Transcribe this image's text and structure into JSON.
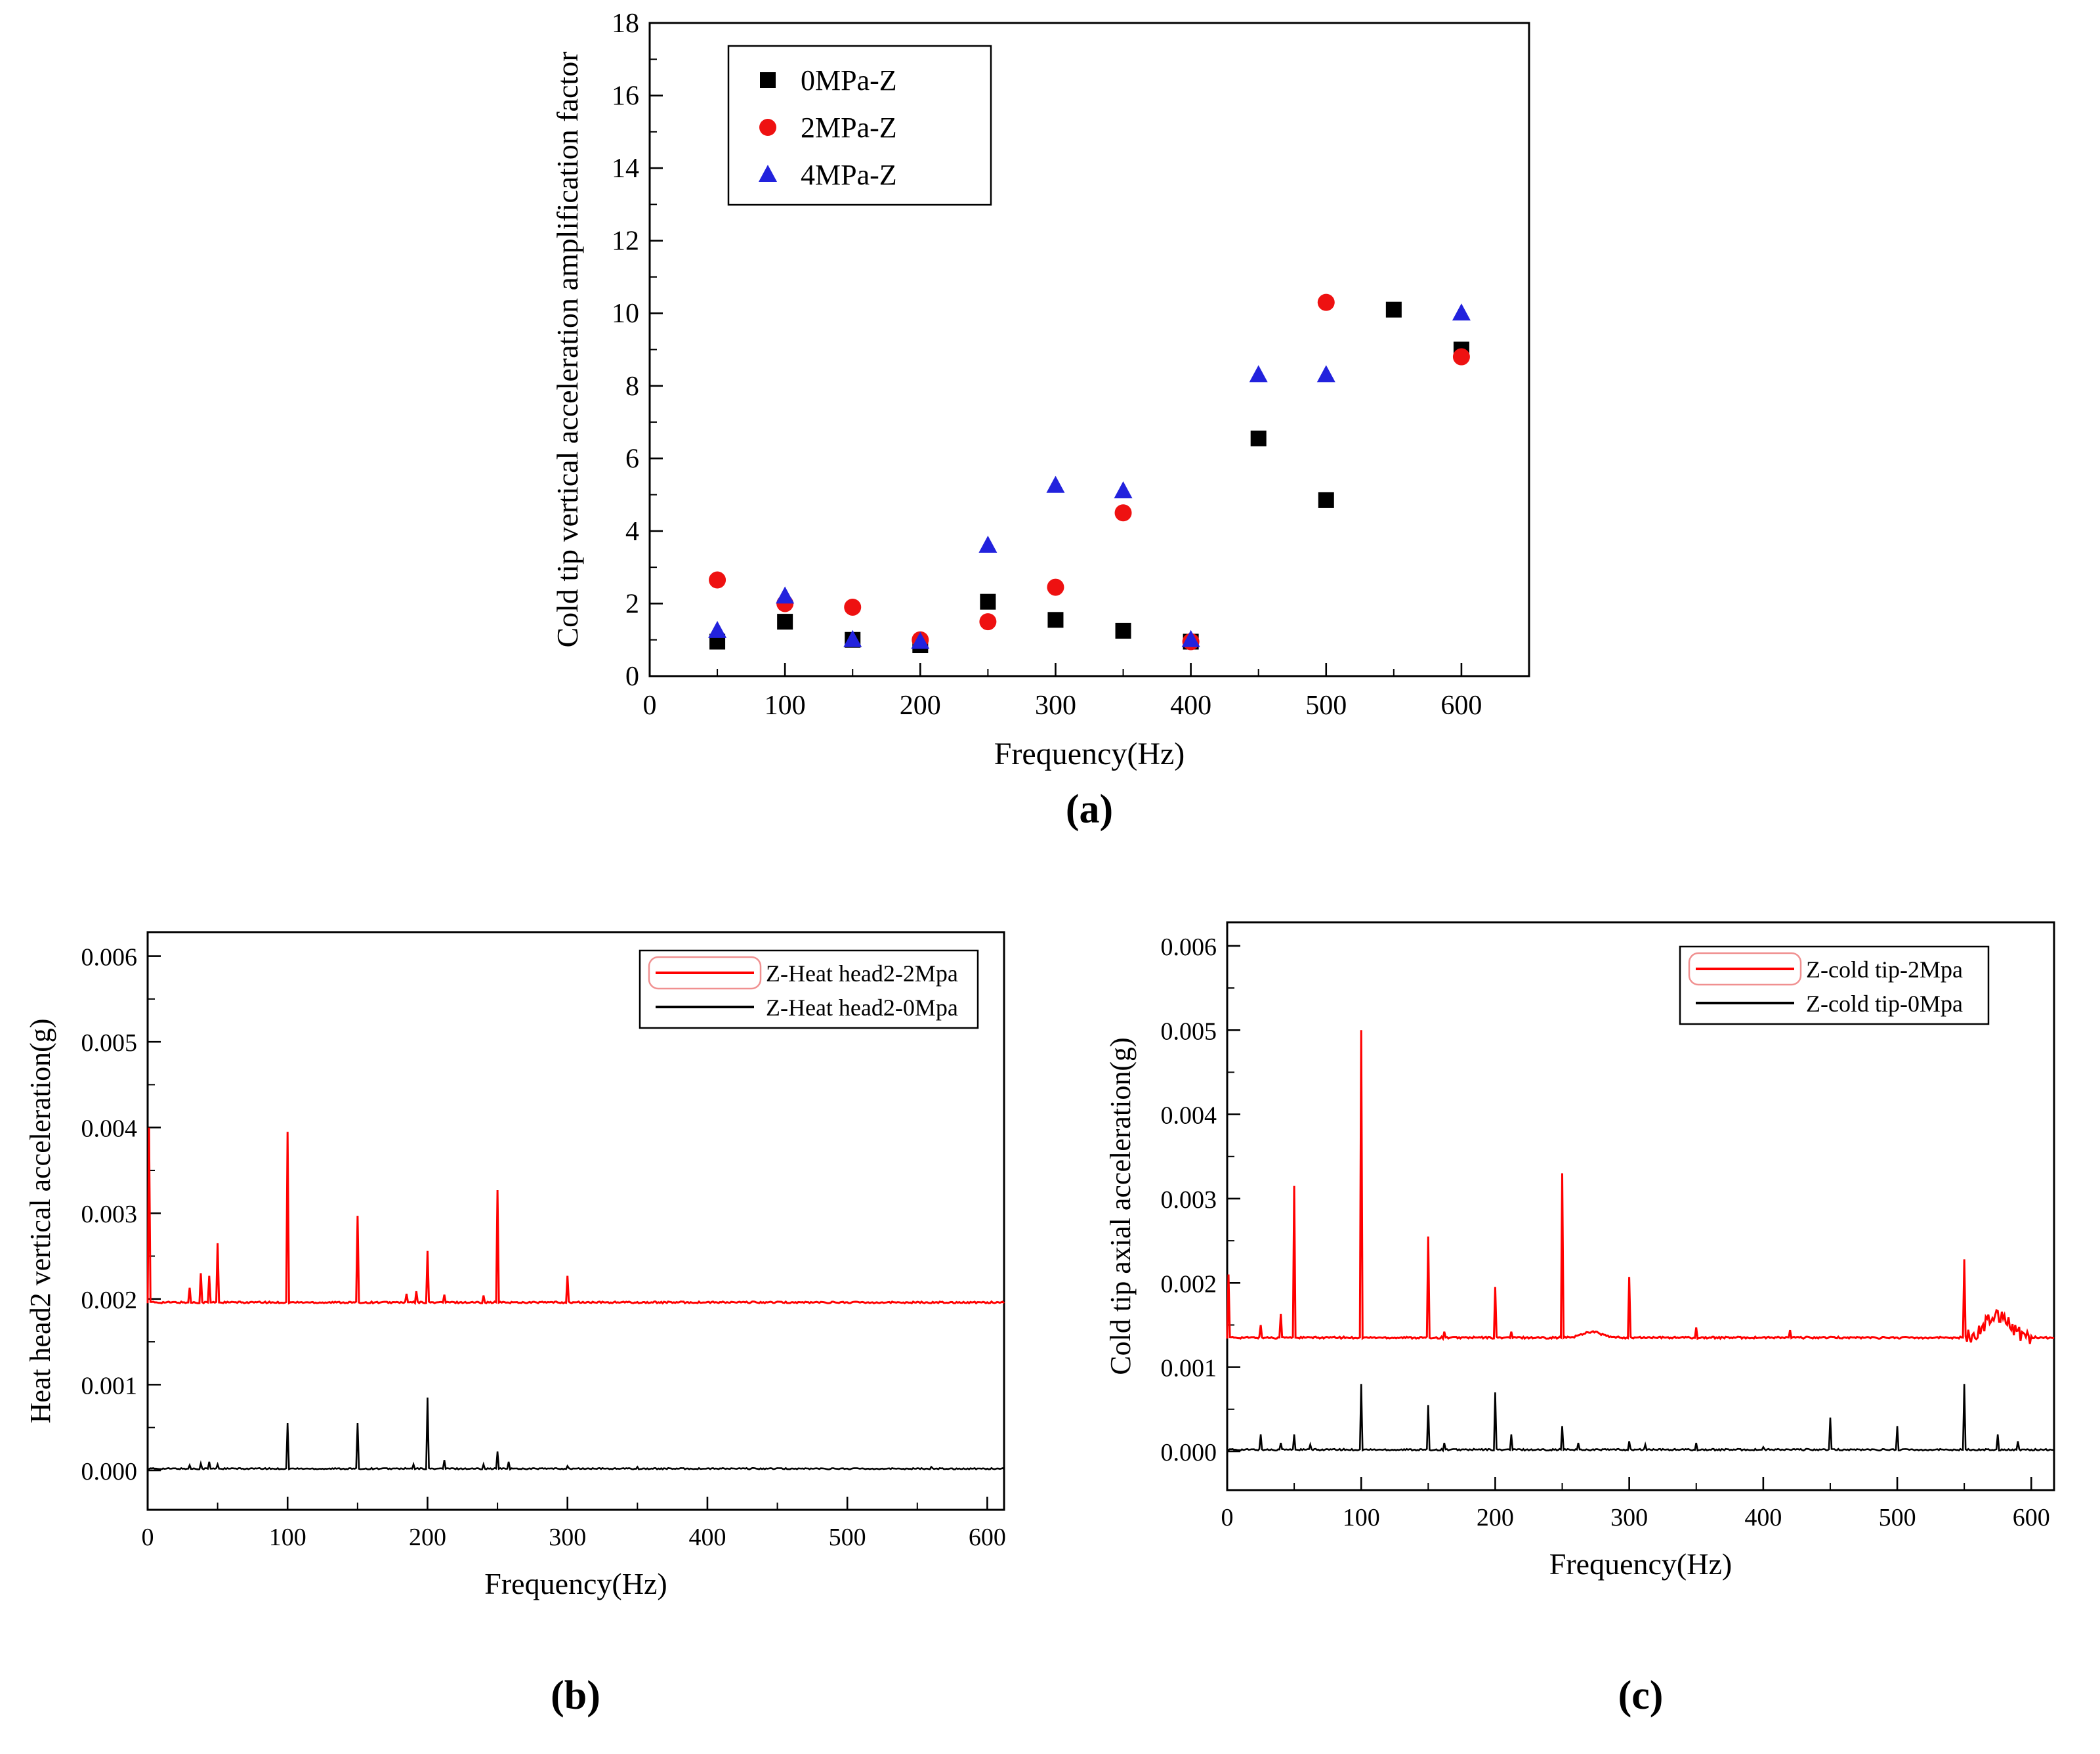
{
  "figure": {
    "panel_a_label": "(a)",
    "panel_b_label": "(b)",
    "panel_c_label": "(c)"
  },
  "colors": {
    "black_series": "#000000",
    "red_series": "#ff0000",
    "blue_series": "#2222dd",
    "legend_inner_box": "#f09090"
  },
  "chart_data": [
    {
      "id": "a",
      "type": "scatter",
      "title": "",
      "xlabel": "Frequency(Hz)",
      "ylabel": "Cold tip vertical acceleration amplification factor",
      "xlim": [
        0,
        650
      ],
      "ylim": [
        0,
        18
      ],
      "xticks": [
        0,
        100,
        200,
        300,
        400,
        500,
        600
      ],
      "yticks": [
        0,
        2,
        4,
        6,
        8,
        10,
        12,
        14,
        16,
        18
      ],
      "xminor": 50,
      "yminor": 1,
      "legend_position": "top-left",
      "series": [
        {
          "name": "0MPa-Z",
          "marker": "square",
          "color": "#000000",
          "points": [
            [
              50,
              0.95
            ],
            [
              100,
              1.5
            ],
            [
              150,
              1.0
            ],
            [
              200,
              0.85
            ],
            [
              250,
              2.05
            ],
            [
              300,
              1.55
            ],
            [
              350,
              1.25
            ],
            [
              400,
              0.95
            ],
            [
              450,
              6.55
            ],
            [
              500,
              4.85
            ],
            [
              550,
              10.1
            ],
            [
              600,
              9.0
            ]
          ]
        },
        {
          "name": "2MPa-Z",
          "marker": "circle",
          "color": "#ee1111",
          "points": [
            [
              50,
              2.65
            ],
            [
              100,
              2.0
            ],
            [
              150,
              1.9
            ],
            [
              200,
              1.0
            ],
            [
              250,
              1.5
            ],
            [
              300,
              2.45
            ],
            [
              350,
              4.5
            ],
            [
              400,
              0.95
            ],
            [
              500,
              10.3
            ],
            [
              600,
              8.8
            ]
          ]
        },
        {
          "name": "4MPa-Z",
          "marker": "triangle",
          "color": "#2222dd",
          "points": [
            [
              50,
              1.25
            ],
            [
              100,
              2.2
            ],
            [
              150,
              1.0
            ],
            [
              200,
              0.95
            ],
            [
              250,
              3.6
            ],
            [
              300,
              5.25
            ],
            [
              350,
              5.1
            ],
            [
              400,
              1.0
            ],
            [
              450,
              8.3
            ],
            [
              500,
              8.3
            ],
            [
              600,
              10.0
            ]
          ]
        }
      ]
    },
    {
      "id": "b",
      "type": "line",
      "title": "",
      "xlabel": "Frequency(Hz)",
      "ylabel": "Heat head2 vertical acceleration(g)",
      "xlim": [
        0,
        612
      ],
      "ylim": [
        -0.00046,
        0.00628
      ],
      "xticks": [
        0,
        100,
        200,
        300,
        400,
        500,
        600
      ],
      "yticks": [
        0.0,
        0.001,
        0.002,
        0.003,
        0.004,
        0.005,
        0.006
      ],
      "ytick_labels": [
        "0.000",
        "0.001",
        "0.002",
        "0.003",
        "0.004",
        "0.005",
        "0.006"
      ],
      "xminor": 50,
      "yminor": 0.0005,
      "legend_position": "top-right",
      "series": [
        {
          "name": "Z-Heat head2-2Mpa",
          "color": "#ff0000",
          "baseline": 0.00196,
          "noise_amp": 1e-05,
          "peaks": [
            [
              1,
              0.004
            ],
            [
              30,
              0.00213
            ],
            [
              38,
              0.0023
            ],
            [
              44,
              0.00227
            ],
            [
              50,
              0.00265
            ],
            [
              100,
              0.00395
            ],
            [
              150,
              0.00297
            ],
            [
              185,
              0.00206
            ],
            [
              192,
              0.00209
            ],
            [
              200,
              0.00256
            ],
            [
              212,
              0.00205
            ],
            [
              240,
              0.00204
            ],
            [
              250,
              0.00327
            ],
            [
              300,
              0.00227
            ]
          ]
        },
        {
          "name": "Z-Heat head2-0Mpa",
          "color": "#000000",
          "baseline": 2e-05,
          "noise_amp": 8e-06,
          "peaks": [
            [
              30,
              6e-05
            ],
            [
              38,
              8e-05
            ],
            [
              44,
              0.0001
            ],
            [
              50,
              7e-05
            ],
            [
              100,
              0.00055
            ],
            [
              150,
              0.00055
            ],
            [
              190,
              7e-05
            ],
            [
              200,
              0.00085
            ],
            [
              212,
              0.00012
            ],
            [
              240,
              7e-05
            ],
            [
              250,
              0.00022
            ],
            [
              258,
              0.0001
            ],
            [
              300,
              5e-05
            ],
            [
              350,
              4e-05
            ],
            [
              560,
              4e-05
            ]
          ]
        }
      ]
    },
    {
      "id": "c",
      "type": "line",
      "title": "",
      "xlabel": "Frequency(Hz)",
      "ylabel": "Cold tip axial acceleration(g)",
      "xlim": [
        0,
        617
      ],
      "ylim": [
        -0.00046,
        0.00628
      ],
      "xticks": [
        0,
        100,
        200,
        300,
        400,
        500,
        600
      ],
      "yticks": [
        0.0,
        0.001,
        0.002,
        0.003,
        0.004,
        0.005,
        0.006
      ],
      "ytick_labels": [
        "0.000",
        "0.001",
        "0.002",
        "0.003",
        "0.004",
        "0.005",
        "0.006"
      ],
      "xminor": 50,
      "yminor": 0.0005,
      "legend_position": "top-right",
      "series": [
        {
          "name": "Z-cold tip-2Mpa",
          "color": "#ff0000",
          "baseline": 0.00135,
          "noise_amp": 1.2e-05,
          "noise_region": {
            "from": 552,
            "to": 600,
            "amp": 9e-05
          },
          "bumps": [
            {
              "x": 272,
              "h": 7e-05,
              "sigma": 7
            },
            {
              "x": 575,
              "h": 0.00028,
              "sigma": 9
            }
          ],
          "peaks": [
            [
              1,
              0.0021
            ],
            [
              25,
              0.0015
            ],
            [
              40,
              0.00163
            ],
            [
              50,
              0.00315
            ],
            [
              100,
              0.005
            ],
            [
              150,
              0.00255
            ],
            [
              162,
              0.00142
            ],
            [
              200,
              0.00195
            ],
            [
              212,
              0.00142
            ],
            [
              250,
              0.0033
            ],
            [
              300,
              0.00207
            ],
            [
              350,
              0.00147
            ],
            [
              420,
              0.00144
            ],
            [
              550,
              0.00228
            ]
          ]
        },
        {
          "name": "Z-cold tip-0Mpa",
          "color": "#000000",
          "baseline": 2e-05,
          "noise_amp": 1e-05,
          "peaks": [
            [
              25,
              0.0002
            ],
            [
              40,
              0.0001
            ],
            [
              50,
              0.0002
            ],
            [
              62,
              8e-05
            ],
            [
              100,
              0.0008
            ],
            [
              150,
              0.00055
            ],
            [
              162,
              0.0001
            ],
            [
              200,
              0.0007
            ],
            [
              212,
              0.0002
            ],
            [
              250,
              0.0003
            ],
            [
              262,
              0.0001
            ],
            [
              300,
              0.00012
            ],
            [
              312,
              8e-05
            ],
            [
              350,
              0.0001
            ],
            [
              400,
              5e-05
            ],
            [
              450,
              0.0004
            ],
            [
              500,
              0.0003
            ],
            [
              550,
              0.0008
            ],
            [
              575,
              0.0002
            ],
            [
              590,
              0.00012
            ]
          ]
        }
      ]
    }
  ]
}
